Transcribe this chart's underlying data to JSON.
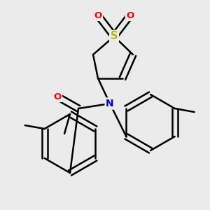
{
  "background_color": "#ebebeb",
  "atom_colors": {
    "S": "#b8b800",
    "O": "#ff0000",
    "N": "#0000cc",
    "C": "#000000"
  },
  "bond_color": "#000000",
  "bond_width": 1.8,
  "figsize": [
    3.0,
    3.0
  ],
  "dpi": 100,
  "font_size_atom": 9.5
}
